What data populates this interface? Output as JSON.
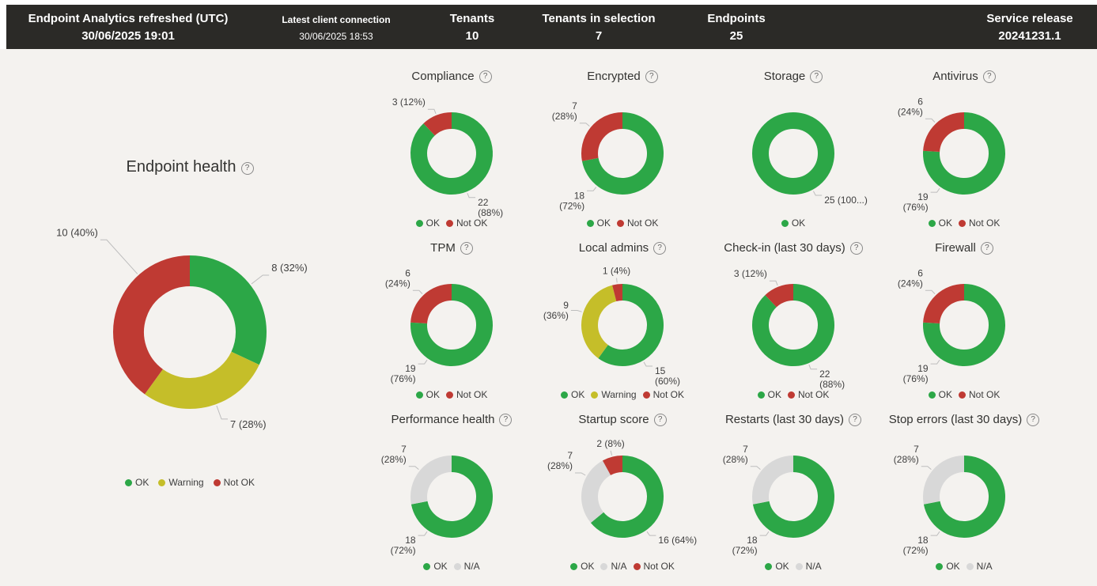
{
  "ui": {
    "help_glyph": "?"
  },
  "colors": {
    "ok": "#2ca747",
    "warning": "#c5be29",
    "notok": "#bf3a33",
    "na": "#d8d8d8",
    "header_bg": "#2b2a27",
    "canvas_bg": "#f4f2ef",
    "leader_line": "#bdbdbd",
    "text": "#3f3f3f"
  },
  "header": {
    "items": [
      {
        "label": "Endpoint Analytics refreshed (UTC)",
        "value": "30/06/2025 19:01",
        "size": "lg"
      },
      {
        "label": "Latest client connection",
        "value": "30/06/2025 18:53",
        "size": "sm"
      },
      {
        "label": "Tenants",
        "value": "10",
        "size": "lg"
      },
      {
        "label": "Tenants in selection",
        "value": "7",
        "size": "lg"
      },
      {
        "label": "Endpoints",
        "value": "25",
        "size": "lg"
      },
      {
        "label": "Service release",
        "value": "20241231.1",
        "size": "lg"
      }
    ]
  },
  "chart_data": [
    {
      "id": "endpoint-health",
      "type": "donut",
      "title": "Endpoint health",
      "total": 25,
      "slices": [
        {
          "name": "OK",
          "value": 8,
          "pct": "32%",
          "color": "ok",
          "callout": [
            "8 (32%)"
          ],
          "angle": 52,
          "ext": 20
        },
        {
          "name": "Warning",
          "value": 7,
          "pct": "28%",
          "color": "warning",
          "callout": [
            "7 (28%)"
          ],
          "angle": 160,
          "ext": 20
        },
        {
          "name": "Not OK",
          "value": 10,
          "pct": "40%",
          "color": "notok",
          "callout": [
            "10 (40%)"
          ],
          "angle": 318,
          "ext": 60
        }
      ]
    },
    {
      "id": "compliance",
      "type": "donut",
      "title": "Compliance",
      "total": 25,
      "slices": [
        {
          "name": "OK",
          "value": 22,
          "pct": "88%",
          "color": "ok",
          "callout": [
            "22",
            "(88%)"
          ]
        },
        {
          "name": "Not OK",
          "value": 3,
          "pct": "12%",
          "color": "notok",
          "callout": [
            "3 (12%)"
          ]
        }
      ]
    },
    {
      "id": "encrypted",
      "type": "donut",
      "title": "Encrypted",
      "total": 25,
      "slices": [
        {
          "name": "OK",
          "value": 18,
          "pct": "72%",
          "color": "ok",
          "callout": [
            "18",
            "(72%)"
          ],
          "angle": 218
        },
        {
          "name": "Not OK",
          "value": 7,
          "pct": "28%",
          "color": "notok",
          "callout": [
            "7",
            "(28%)"
          ]
        }
      ]
    },
    {
      "id": "storage",
      "type": "donut",
      "title": "Storage",
      "total": 25,
      "slices": [
        {
          "name": "OK",
          "value": 25,
          "pct": "100%",
          "color": "ok",
          "callout": [
            "25 (100...)"
          ],
          "angle": 152
        }
      ]
    },
    {
      "id": "antivirus",
      "type": "donut",
      "title": "Antivirus",
      "total": 25,
      "slices": [
        {
          "name": "OK",
          "value": 19,
          "pct": "76%",
          "color": "ok",
          "callout": [
            "19",
            "(76%)"
          ],
          "angle": 215
        },
        {
          "name": "Not OK",
          "value": 6,
          "pct": "24%",
          "color": "notok",
          "callout": [
            "6",
            "(24%)"
          ]
        }
      ]
    },
    {
      "id": "tpm",
      "type": "donut",
      "title": "TPM",
      "total": 25,
      "slices": [
        {
          "name": "OK",
          "value": 19,
          "pct": "76%",
          "color": "ok",
          "callout": [
            "19",
            "(76%)"
          ],
          "angle": 215
        },
        {
          "name": "Not OK",
          "value": 6,
          "pct": "24%",
          "color": "notok",
          "callout": [
            "6",
            "(24%)"
          ]
        }
      ]
    },
    {
      "id": "local-admins",
      "type": "donut",
      "title": "Local admins",
      "total": 25,
      "slices": [
        {
          "name": "OK",
          "value": 15,
          "pct": "60%",
          "color": "ok",
          "callout": [
            "15",
            "(60%)"
          ],
          "angle": 150
        },
        {
          "name": "Warning",
          "value": 9,
          "pct": "36%",
          "color": "warning",
          "callout": [
            "9",
            "(36%)"
          ],
          "angle": 288
        },
        {
          "name": "Not OK",
          "value": 1,
          "pct": "4%",
          "color": "notok",
          "callout": [
            "1 (4%)"
          ]
        }
      ]
    },
    {
      "id": "check-in",
      "type": "donut",
      "title": "Check-in (last 30 days)",
      "total": 25,
      "slices": [
        {
          "name": "OK",
          "value": 22,
          "pct": "88%",
          "color": "ok",
          "callout": [
            "22",
            "(88%)"
          ]
        },
        {
          "name": "Not OK",
          "value": 3,
          "pct": "12%",
          "color": "notok",
          "callout": [
            "3 (12%)"
          ]
        }
      ]
    },
    {
      "id": "firewall",
      "type": "donut",
      "title": "Firewall",
      "total": 25,
      "slices": [
        {
          "name": "OK",
          "value": 19,
          "pct": "76%",
          "color": "ok",
          "callout": [
            "19",
            "(76%)"
          ],
          "angle": 215
        },
        {
          "name": "Not OK",
          "value": 6,
          "pct": "24%",
          "color": "notok",
          "callout": [
            "6",
            "(24%)"
          ]
        }
      ]
    },
    {
      "id": "performance-health",
      "type": "donut",
      "title": "Performance health",
      "total": 25,
      "slices": [
        {
          "name": "OK",
          "value": 18,
          "pct": "72%",
          "color": "ok",
          "callout": [
            "18",
            "(72%)"
          ],
          "angle": 215
        },
        {
          "name": "N/A",
          "value": 7,
          "pct": "28%",
          "color": "na",
          "callout": [
            "7",
            "(28%)"
          ]
        }
      ]
    },
    {
      "id": "startup-score",
      "type": "donut",
      "title": "Startup score",
      "total": 25,
      "slices": [
        {
          "name": "OK",
          "value": 16,
          "pct": "64%",
          "color": "ok",
          "callout": [
            "16 (64%)"
          ],
          "angle": 145
        },
        {
          "name": "N/A",
          "value": 7,
          "pct": "28%",
          "color": "na",
          "callout": [
            "7",
            "(28%)"
          ],
          "angle": 300
        },
        {
          "name": "Not OK",
          "value": 2,
          "pct": "8%",
          "color": "notok",
          "callout": [
            "2 (8%)"
          ]
        }
      ]
    },
    {
      "id": "restarts",
      "type": "donut",
      "title": "Restarts (last 30 days)",
      "total": 25,
      "slices": [
        {
          "name": "OK",
          "value": 18,
          "pct": "72%",
          "color": "ok",
          "callout": [
            "18",
            "(72%)"
          ],
          "angle": 215
        },
        {
          "name": "N/A",
          "value": 7,
          "pct": "28%",
          "color": "na",
          "callout": [
            "7",
            "(28%)"
          ]
        }
      ]
    },
    {
      "id": "stop-errors",
      "type": "donut",
      "title": "Stop errors (last 30 days)",
      "total": 25,
      "slices": [
        {
          "name": "OK",
          "value": 18,
          "pct": "72%",
          "color": "ok",
          "callout": [
            "18",
            "(72%)"
          ],
          "angle": 215
        },
        {
          "name": "N/A",
          "value": 7,
          "pct": "28%",
          "color": "na",
          "callout": [
            "7",
            "(28%)"
          ]
        }
      ]
    }
  ]
}
